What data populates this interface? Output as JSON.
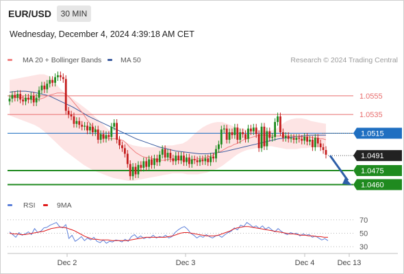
{
  "header": {
    "symbol": "EUR/USD",
    "timeframe": "30 MIN",
    "datetime": "Wednesday, December 4, 2024 4:39:18 AM CET"
  },
  "colors": {
    "ma20": "#f08080",
    "bollinger_fill": "#fde3e3",
    "ma50": "#3a5a9e",
    "resistance": "#e86c6c",
    "pivot": "#1f6fc1",
    "support": "#1f8a1f",
    "current_price": "#222222",
    "candle_up": "#1c8a1c",
    "candle_down": "#c41c1c",
    "rsi": "#5b7fd9",
    "rsi_ma": "#e01b1b",
    "arrow": "#2e5fa8"
  },
  "chart_data": [
    {
      "type": "candlestick",
      "legend": [
        {
          "name": "MA 20 + Bollinger Bands",
          "color": "#f08080"
        },
        {
          "name": "MA 50",
          "color": "#3a5a9e"
        }
      ],
      "legend_placement": "top-left",
      "credit": "Research © 2024 Trading Central",
      "y_range": [
        1.0453,
        1.0585
      ],
      "x_labels": [
        "Dec 2",
        "Dec 3",
        "Dec 4",
        "Dec 13"
      ],
      "levels": [
        {
          "label": "1.0555",
          "value": 1.0555,
          "kind": "resistance",
          "style": "line"
        },
        {
          "label": "1.0535",
          "value": 1.0535,
          "kind": "resistance",
          "style": "line"
        },
        {
          "label": "1.0515",
          "value": 1.0515,
          "kind": "pivot",
          "style": "line-badge"
        },
        {
          "label": "1.0491",
          "value": 1.0491,
          "kind": "current_price",
          "style": "dotted-badge"
        },
        {
          "label": "1.0475",
          "value": 1.0475,
          "kind": "support",
          "style": "line-badge"
        },
        {
          "label": "1.0460",
          "value": 1.046,
          "kind": "support",
          "style": "line-badge"
        }
      ],
      "closes": [
        1.0552,
        1.0556,
        1.0553,
        1.0557,
        1.0551,
        1.0549,
        1.0553,
        1.0551,
        1.0555,
        1.0548,
        1.0553,
        1.0561,
        1.0566,
        1.0562,
        1.0568,
        1.0572,
        1.0569,
        1.0575,
        1.0577,
        1.0575,
        1.0573,
        1.0539,
        1.0535,
        1.0533,
        1.0525,
        1.0528,
        1.0524,
        1.0522,
        1.0523,
        1.0518,
        1.0522,
        1.0516,
        1.0519,
        1.0508,
        1.0514,
        1.0509,
        1.0513,
        1.0511,
        1.0522,
        1.0526,
        1.0508,
        1.0502,
        1.0499,
        1.0493,
        1.0482,
        1.0469,
        1.0479,
        1.0471,
        1.0481,
        1.0478,
        1.0485,
        1.0479,
        1.0487,
        1.0481,
        1.0488,
        1.0484,
        1.0492,
        1.0498,
        1.0489,
        1.0494,
        1.0488,
        1.0485,
        1.0491,
        1.0486,
        1.0491,
        1.0484,
        1.0489,
        1.0482,
        1.0487,
        1.0486,
        1.0484,
        1.0487,
        1.0485,
        1.0488,
        1.0484,
        1.049,
        1.0488,
        1.0498,
        1.0503,
        1.0519,
        1.052,
        1.0508,
        1.0516,
        1.0513,
        1.0521,
        1.0508,
        1.0516,
        1.0514,
        1.0509,
        1.052,
        1.0517,
        1.0521,
        1.0514,
        1.0499,
        1.0522,
        1.0501,
        1.0517,
        1.051,
        1.0511,
        1.0527,
        1.0533,
        1.0516,
        1.051,
        1.0512,
        1.0509,
        1.051,
        1.0508,
        1.051,
        1.0509,
        1.0507,
        1.0511,
        1.0506,
        1.0508,
        1.05,
        1.051,
        1.0504,
        1.05,
        1.0497,
        1.0492
      ],
      "ma_20": [
        1.0554,
        1.0554,
        1.0553,
        1.0553,
        1.0553,
        1.0552,
        1.0552,
        1.0551,
        1.0551,
        1.0551,
        1.0552,
        1.0553,
        1.0555,
        1.0556,
        1.0557,
        1.0558,
        1.0558,
        1.0558,
        1.0556,
        1.0553,
        1.0549,
        1.0545,
        1.0541,
        1.0537,
        1.0532,
        1.0527,
        1.0523,
        1.0519,
        1.0516,
        1.0513,
        1.0511,
        1.051,
        1.0509,
        1.0509,
        1.0509,
        1.0508,
        1.0507,
        1.0504,
        1.05,
        1.0497,
        1.0494,
        1.0492,
        1.049,
        1.0489,
        1.0489,
        1.0488,
        1.0487,
        1.0487,
        1.0486,
        1.0486,
        1.0487,
        1.0487,
        1.0487,
        1.0487,
        1.0486,
        1.0486,
        1.0486,
        1.0486,
        1.0487,
        1.0487,
        1.0488,
        1.0488,
        1.0489,
        1.049,
        1.0491,
        1.0493,
        1.0495,
        1.0496,
        1.0498,
        1.05,
        1.0501,
        1.0503,
        1.0504,
        1.0506,
        1.0508,
        1.0509,
        1.051,
        1.0511,
        1.0512,
        1.0513,
        1.0513,
        1.0513,
        1.0512,
        1.0512,
        1.0512,
        1.0512,
        1.0512,
        1.0512,
        1.0512,
        1.0512,
        1.0512,
        1.0511,
        1.0511,
        1.0511,
        1.0511,
        1.0511,
        1.051,
        1.051,
        1.0509,
        1.0509,
        1.0508
      ],
      "bollinger_upper": [
        1.0572,
        1.0573,
        1.0574,
        1.0575,
        1.0576,
        1.0577,
        1.0578,
        1.0578,
        1.0576,
        1.0571,
        1.0564,
        1.0559,
        1.0555,
        1.0551,
        1.0547,
        1.0543,
        1.0539,
        1.0534,
        1.0529,
        1.0524,
        1.0519,
        1.0515,
        1.0511,
        1.0507,
        1.0504,
        1.0502,
        1.0501,
        1.05,
        1.05,
        1.05,
        1.05,
        1.0501,
        1.0502,
        1.0502,
        1.0503,
        1.0504,
        1.0507,
        1.0512,
        1.0517,
        1.0521,
        1.0524,
        1.0526,
        1.0527,
        1.0527,
        1.0525,
        1.0523,
        1.0521,
        1.052,
        1.0519,
        1.0519,
        1.0519,
        1.0518,
        1.0518,
        1.0518,
        1.052,
        1.0524,
        1.0528,
        1.053,
        1.0531,
        1.0531,
        1.053,
        1.0528,
        1.0527,
        1.0526,
        1.0525
      ],
      "bollinger_lower": [
        1.0534,
        1.0532,
        1.053,
        1.0528,
        1.0526,
        1.0524,
        1.0521,
        1.0517,
        1.0512,
        1.0507,
        1.0502,
        1.0497,
        1.0493,
        1.0489,
        1.0485,
        1.0481,
        1.0478,
        1.0475,
        1.0473,
        1.0471,
        1.0469,
        1.0467,
        1.0466,
        1.0465,
        1.0464,
        1.0464,
        1.0465,
        1.0466,
        1.0467,
        1.0468,
        1.0469,
        1.047,
        1.0471,
        1.0472,
        1.0472,
        1.0472,
        1.0471,
        1.0471,
        1.0471,
        1.0472,
        1.0473,
        1.0475,
        1.0477,
        1.048,
        1.0484,
        1.0488,
        1.0492,
        1.0495,
        1.0497,
        1.0498,
        1.0499,
        1.05,
        1.0501,
        1.0501,
        1.05,
        1.0499,
        1.0498,
        1.0498,
        1.0498,
        1.0499,
        1.0499,
        1.05,
        1.05,
        1.05,
        1.0499
      ],
      "ma_50": [
        1.0559,
        1.056,
        1.056,
        1.0559,
        1.0557,
        1.0555,
        1.0551,
        1.0547,
        1.0543,
        1.0538,
        1.0533,
        1.0529,
        1.0525,
        1.0521,
        1.0517,
        1.0513,
        1.0509,
        1.0506,
        1.0503,
        1.05,
        1.0498,
        1.0496,
        1.0495,
        1.0494,
        1.0493,
        1.0493,
        1.0494,
        1.0495,
        1.0497,
        1.0499,
        1.0501,
        1.0503,
        1.0505,
        1.0507,
        1.0509,
        1.051,
        1.0511,
        1.0512,
        1.0513,
        1.0513,
        1.0513
      ]
    },
    {
      "type": "line",
      "legend": [
        {
          "name": "RSI",
          "color": "#5b7fd9"
        },
        {
          "name": "9MA",
          "color": "#e01b1b"
        }
      ],
      "ylim": [
        25,
        75
      ],
      "y_ticks": [
        "70",
        "50",
        "30"
      ],
      "series": [
        {
          "name": "RSI",
          "values": [
            52,
            48,
            44,
            51,
            47,
            49,
            52,
            48,
            57,
            51,
            53,
            58,
            59,
            62,
            64,
            66,
            60,
            58,
            63,
            42,
            47,
            38,
            41,
            45,
            39,
            43,
            40,
            44,
            38,
            36,
            40,
            35,
            38,
            37,
            40,
            39,
            37,
            41,
            38,
            45,
            48,
            43,
            46,
            42,
            44,
            43,
            47,
            43,
            45,
            44,
            47,
            43,
            45,
            51,
            55,
            58,
            60,
            56,
            50,
            47,
            43,
            46,
            44,
            48,
            45,
            43,
            46,
            47,
            44,
            48,
            51,
            53,
            58,
            55,
            62,
            60,
            66,
            63,
            59,
            61,
            57,
            61,
            56,
            59,
            55,
            52,
            57,
            53,
            50,
            48,
            51,
            49,
            50,
            46,
            49,
            47,
            48,
            44,
            46,
            43,
            40,
            42,
            39
          ]
        },
        {
          "name": "9MA",
          "values": [
            50,
            49,
            49,
            48,
            48,
            49,
            50,
            51,
            52,
            53,
            55,
            57,
            58,
            59,
            59,
            58,
            56,
            54,
            51,
            48,
            45,
            43,
            41,
            41,
            40,
            40,
            40,
            39,
            39,
            39,
            39,
            39,
            40,
            41,
            42,
            43,
            44,
            44,
            44,
            44,
            44,
            44,
            45,
            46,
            48,
            50,
            51,
            51,
            50,
            49,
            48,
            47,
            46,
            46,
            46,
            47,
            49,
            51,
            53,
            56,
            58,
            59,
            60,
            60,
            59,
            58,
            57,
            56,
            55,
            54,
            53,
            52,
            51,
            50,
            49,
            49,
            48,
            47,
            47,
            46,
            46,
            45,
            45,
            44,
            44
          ]
        }
      ]
    }
  ]
}
